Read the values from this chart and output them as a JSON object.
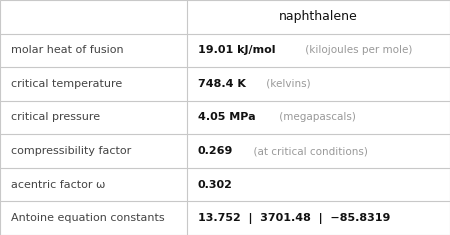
{
  "title": "naphthalene",
  "col_split": 0.415,
  "rows": [
    {
      "label": "molar heat of fusion",
      "value_bold": "19.01 kJ/mol",
      "value_light": " (kilojoules per mole)"
    },
    {
      "label": "critical temperature",
      "value_bold": "748.4 K",
      "value_light": " (kelvins)"
    },
    {
      "label": "critical pressure",
      "value_bold": "4.05 MPa",
      "value_light": " (megapascals)"
    },
    {
      "label": "compressibility factor",
      "value_bold": "0.269",
      "value_light": "  (at critical conditions)"
    },
    {
      "label": "acentric factor ω",
      "value_bold": "0.302",
      "value_light": ""
    },
    {
      "label": "Antoine equation constants",
      "value_bold": "13.752  |  3701.48  |  −85.8319",
      "value_light": ""
    }
  ],
  "bg_color": "#ffffff",
  "grid_color": "#c8c8c8",
  "label_color": "#444444",
  "bold_color": "#111111",
  "light_color": "#999999",
  "header_color": "#111111",
  "label_fontsize": 8.0,
  "value_fontsize": 8.0,
  "light_fontsize": 7.5,
  "header_fontsize": 9.0
}
